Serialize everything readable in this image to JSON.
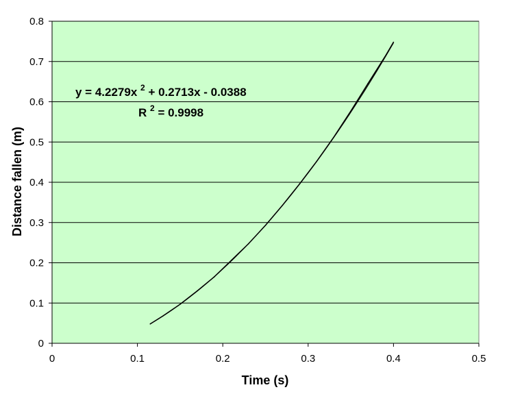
{
  "chart_data": {
    "type": "scatter",
    "title": "",
    "xlabel": "Time (s)",
    "ylabel": "Distance fallen (m)",
    "xlim": [
      0,
      0.5
    ],
    "ylim": [
      0,
      0.8
    ],
    "xticks": [
      "0",
      "0.1",
      "0.2",
      "0.3",
      "0.4",
      "0.5"
    ],
    "yticks": [
      "0",
      "0.1",
      "0.2",
      "0.3",
      "0.4",
      "0.5",
      "0.6",
      "0.7",
      "0.8"
    ],
    "grid": "horizontal",
    "plot_area_color": "#ccffcc",
    "series": [
      {
        "x": [
          0.115,
          0.13,
          0.15,
          0.17,
          0.19,
          0.21,
          0.23,
          0.25,
          0.27,
          0.29,
          0.31,
          0.33,
          0.35,
          0.37,
          0.39,
          0.4
        ],
        "y": [
          0.048,
          0.068,
          0.097,
          0.13,
          0.165,
          0.206,
          0.247,
          0.293,
          0.343,
          0.396,
          0.452,
          0.512,
          0.577,
          0.645,
          0.712,
          0.748
        ],
        "color": "#000000"
      }
    ],
    "trendline": {
      "type": "polynomial",
      "order": 2,
      "coefficients": [
        4.2279,
        0.2713,
        -0.0388
      ],
      "x_range": [
        0.115,
        0.4
      ],
      "color": "#000000"
    },
    "annotations": {
      "equation_prefix": "y = 4.2279x",
      "equation_sup": "2",
      "equation_suffix": " + 0.2713x - 0.0388",
      "r2_prefix": "R",
      "r2_sup": "2",
      "r2_suffix": " = 0.9998"
    }
  }
}
